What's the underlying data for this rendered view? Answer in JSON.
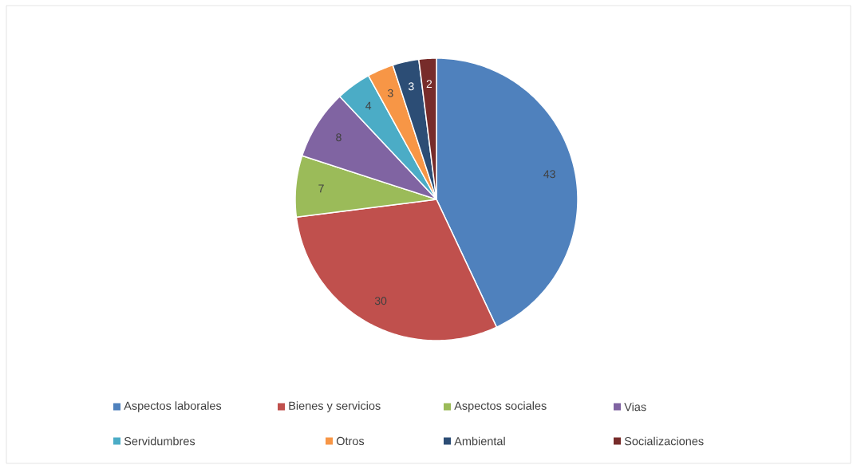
{
  "chart_data": {
    "type": "pie",
    "categories": [
      "Aspectos laborales",
      "Bienes y servicios",
      "Aspectos sociales",
      "Vias",
      "Servidumbres",
      "Otros",
      "Ambiental",
      "Socializaciones"
    ],
    "values": [
      43,
      30,
      7,
      8,
      4,
      3,
      3,
      2
    ],
    "colors": [
      "#4f81bd",
      "#c0504d",
      "#9bbb59",
      "#8064a2",
      "#4bacc6",
      "#f79646",
      "#2c4d75",
      "#772c2a"
    ],
    "data_labels": true,
    "legend": "bottom"
  }
}
